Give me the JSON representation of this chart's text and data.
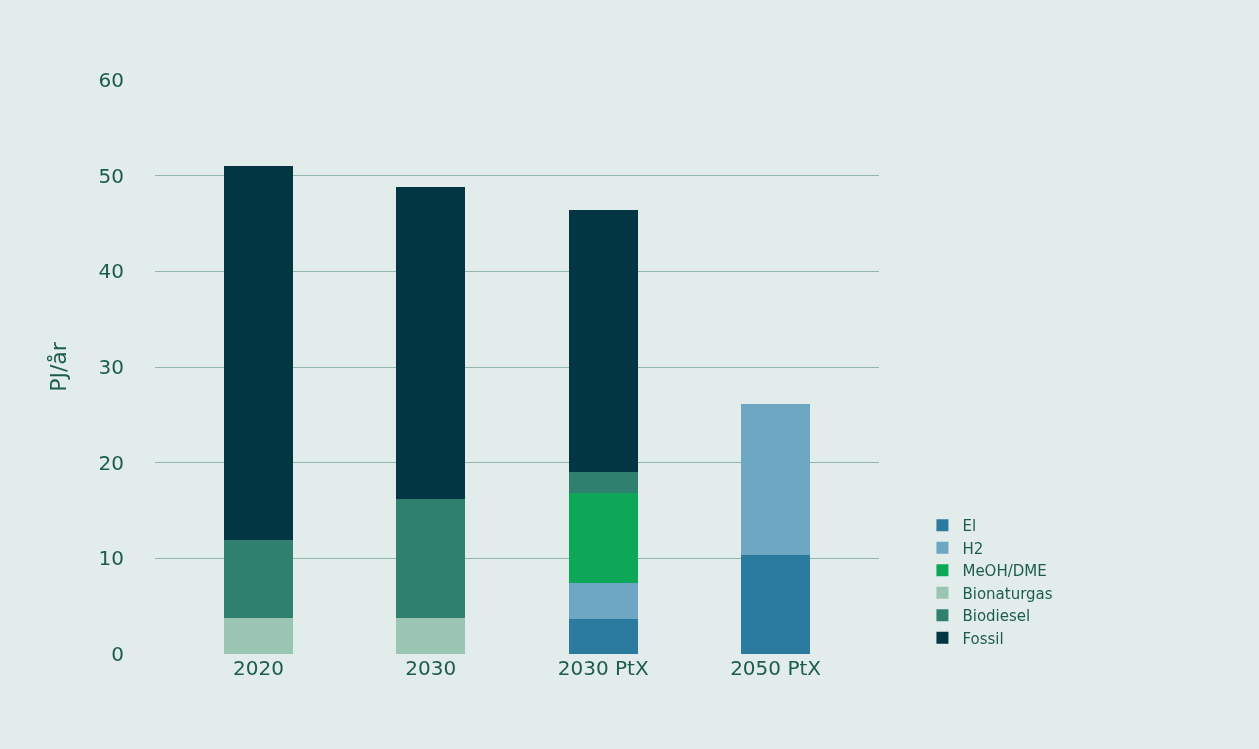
{
  "chart_data": {
    "type": "bar",
    "stacked": true,
    "ylabel": "PJ/år",
    "categories": [
      "2020",
      "2030",
      "2030 PtX",
      "2050 PtX"
    ],
    "series": [
      {
        "name": "El",
        "color": "#2b7a9f",
        "values": [
          null,
          null,
          3.7,
          10.4
        ]
      },
      {
        "name": "H2",
        "color": "#6da7c3",
        "values": [
          null,
          null,
          3.7,
          15.7
        ]
      },
      {
        "name": "MeOH/DME",
        "color": "#0ca858",
        "values": [
          null,
          null,
          9.4,
          null
        ]
      },
      {
        "name": "Bionaturgas",
        "color": "#9ac5b3",
        "values": [
          3.8,
          3.8,
          null,
          null
        ]
      },
      {
        "name": "Biodiesel",
        "color": "#308070",
        "values": [
          8.1,
          12.4,
          2.2,
          null
        ]
      },
      {
        "name": "Fossil",
        "color": "#023643",
        "values": [
          39.1,
          32.6,
          27.4,
          null
        ]
      }
    ],
    "ylim": [
      0,
      60
    ],
    "yticks": [
      0,
      10,
      20,
      30,
      40,
      50,
      60
    ],
    "grid": "y",
    "legend": "bottom right"
  }
}
